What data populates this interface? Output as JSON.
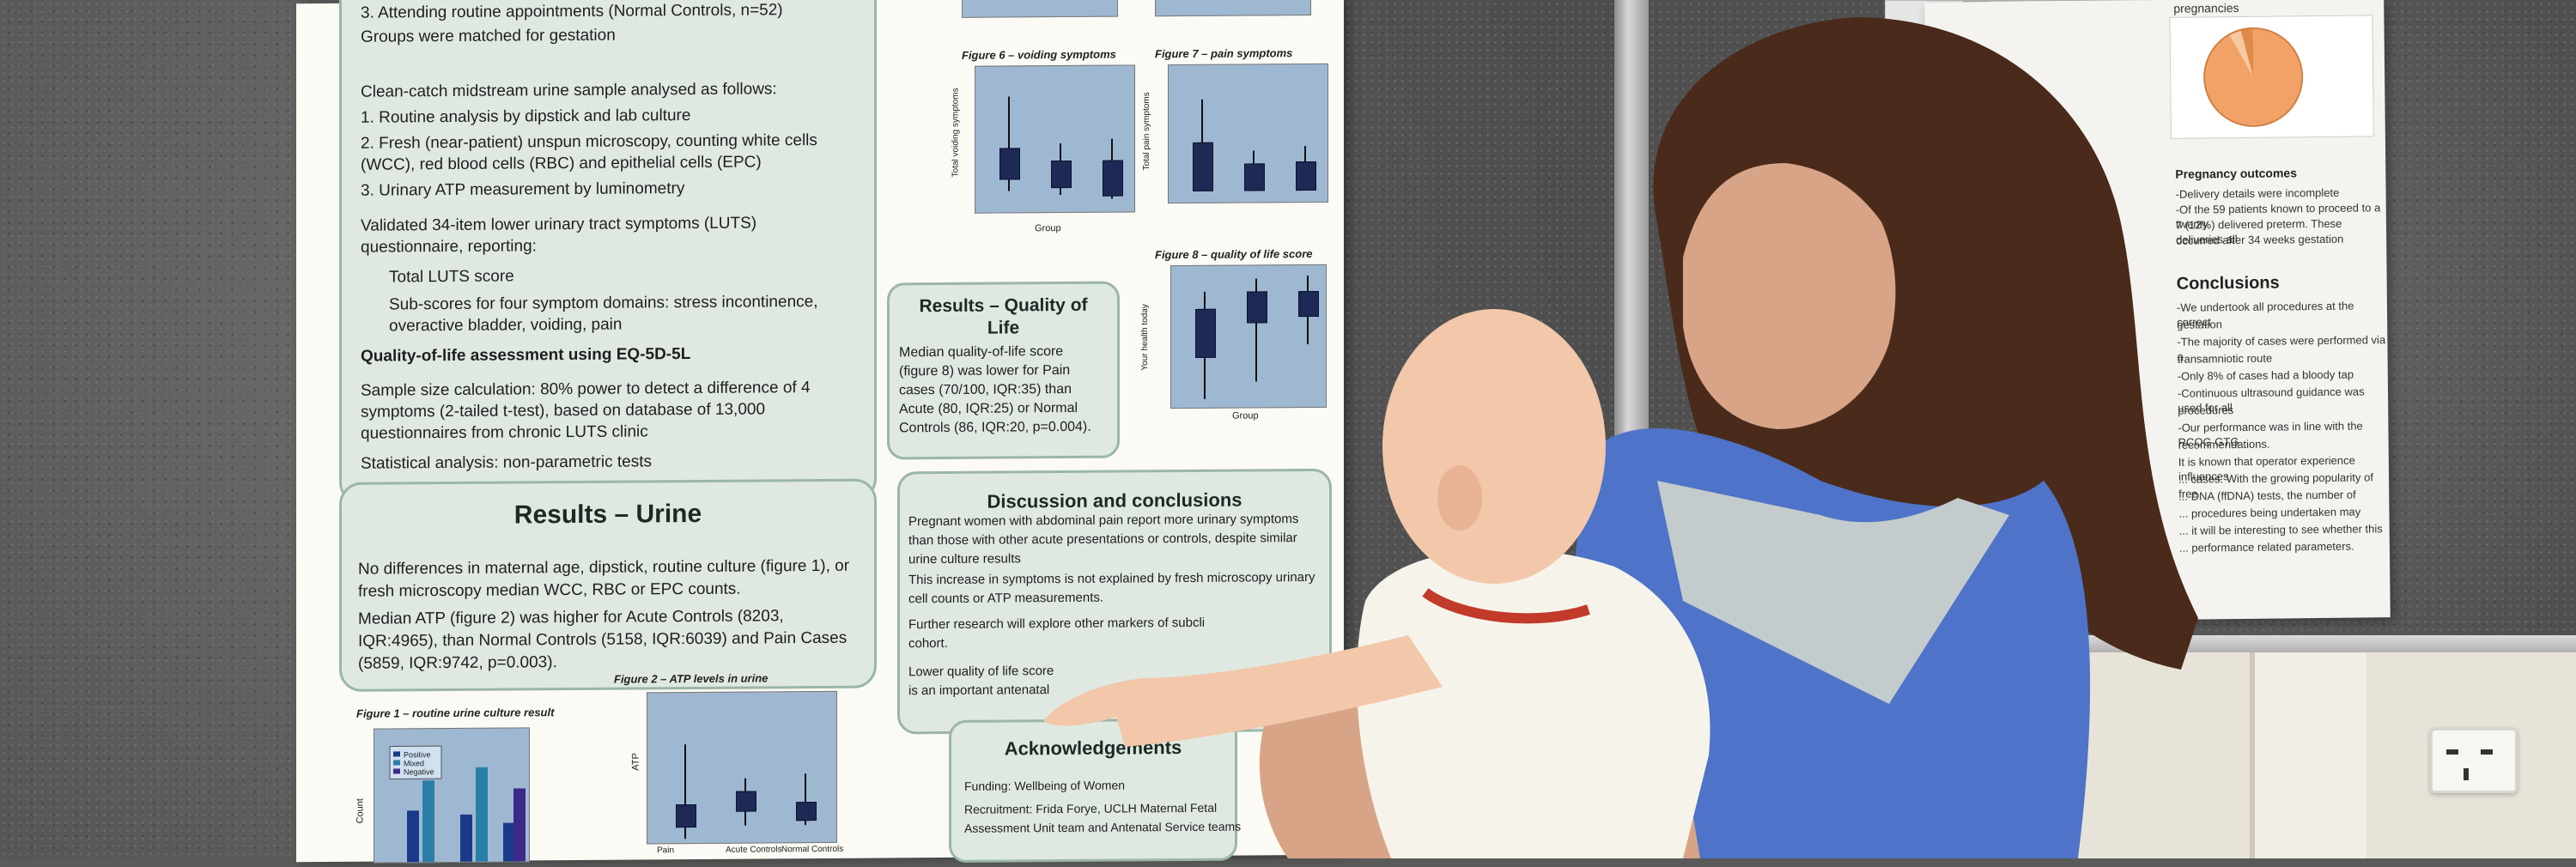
{
  "poster": {
    "methods_lines": [
      "3.  Attending routine appointments (Normal Controls, n=52)",
      "Groups were matched for gestation",
      "Clean-catch midstream urine sample analysed as follows:",
      "1.  Routine analysis by dipstick and lab culture",
      "2.  Fresh (near-patient) unspun microscopy, counting white cells",
      "     (WCC), red blood cells (RBC) and epithelial cells (EPC)",
      "3.  Urinary ATP measurement by luminometry",
      "Validated 34-item lower urinary tract symptoms (LUTS)",
      "questionnaire, reporting:",
      "Total LUTS score",
      "Sub-scores for four symptom domains: stress incontinence,",
      "overactive bladder, voiding, pain",
      "Quality-of-life assessment using EQ-5D-5L",
      "Sample size calculation: 80% power to detect a difference of 4",
      "symptoms (2-tailed t-test), based on database of 13,000",
      "questionnaires from chronic LUTS clinic",
      "Statistical analysis: non-parametric tests"
    ],
    "urine_title": "Results – Urine",
    "urine_lines": [
      "No differences in maternal age, dipstick, routine culture (figure 1), or",
      "fresh microscopy median WCC, RBC or EPC counts.",
      "Median ATP (figure 2) was higher for Acute Controls (8203,",
      "IQR:4965), than Normal Controls (5158, IQR:6039) and Pain Cases",
      "(5859, IQR:9742, p=0.003)."
    ],
    "fig1_title": "Figure 1 – routine urine culture result",
    "fig1_legend": [
      "Positive",
      "Mixed",
      "Negative"
    ],
    "fig1_ylabel": "Count",
    "fig2_title": "Figure 2 – ATP levels in urine",
    "fig2_ylabel": "ATP",
    "fig6_title": "Figure 6 – voiding symptoms",
    "fig6_ylabel": "Total voiding symptoms",
    "fig7_title": "Figure 7 – pain symptoms",
    "fig7_ylabel": "Total pain symptoms",
    "fig8_title": "Figure 8 – quality of life score",
    "fig8_ylabel": "Your health today",
    "group_label": "Group",
    "groups": [
      "Pain",
      "Acute Controls",
      "Normal Controls"
    ],
    "qol_title": "Results – Quality of Life",
    "qol_lines": [
      "Median quality-of-life score",
      "(figure 8) was lower for Pain",
      "cases (70/100, IQR:35) than",
      "Acute (80, IQR:25) or Normal",
      "Controls (86, IQR:20, p=0.004)."
    ],
    "disc_title": "Discussion and conclusions",
    "disc_lines": [
      "Pregnant women with abdominal pain report more urinary symptoms",
      "than those with other acute presentations or controls, despite similar",
      "urine culture results",
      "This increase in symptoms is not explained by fresh microscopy urinary",
      "cell counts or ATP measurements.",
      "Further research will explore other markers of subcli",
      "cohort.",
      "Lower quality of life score",
      "is an important antenatal"
    ],
    "ack_title": "Acknowledgements",
    "ack_lines": [
      "Funding: Wellbeing of Women",
      "Recruitment: Frida Forye, UCLH Maternal Fetal",
      "Assessment Unit team and Antenatal Service teams"
    ]
  },
  "poster2": {
    "pie_caption": "pregnancies",
    "outcomes_title": "Pregnancy outcomes",
    "outcomes_lines": [
      "-Delivery details were incomplete",
      "-Of the 59 patients known to proceed to a twenty",
      "7 (12%) delivered preterm. These deliveries all",
      "occurred after 34 weeks gestation"
    ],
    "conclusions_title": "Conclusions",
    "conclusions_lines": [
      "-We undertook all procedures at the correct",
      "gestation",
      "-The majority of cases were performed via a",
      "transamniotic route",
      "-Only 8% of cases had a bloody tap",
      "-Continuous ultrasound guidance was used for all",
      "procedures",
      "-Our performance was in line with the RCOG GTG",
      "recommendations.",
      "It is known that operator experience influences",
      "... cases. With the growing popularity of free",
      "... DNA (ffDNA) tests, the number of",
      "... procedures being undertaken may",
      "... it will be interesting to see whether this",
      "... performance related parameters."
    ]
  },
  "colors": {
    "panel_fill": "#dfe9e1",
    "panel_border": "#9bb6a6",
    "plot_fill": "#9fb8d2",
    "box_fill": "#1d2a55",
    "pie_main": "#f2a266"
  }
}
